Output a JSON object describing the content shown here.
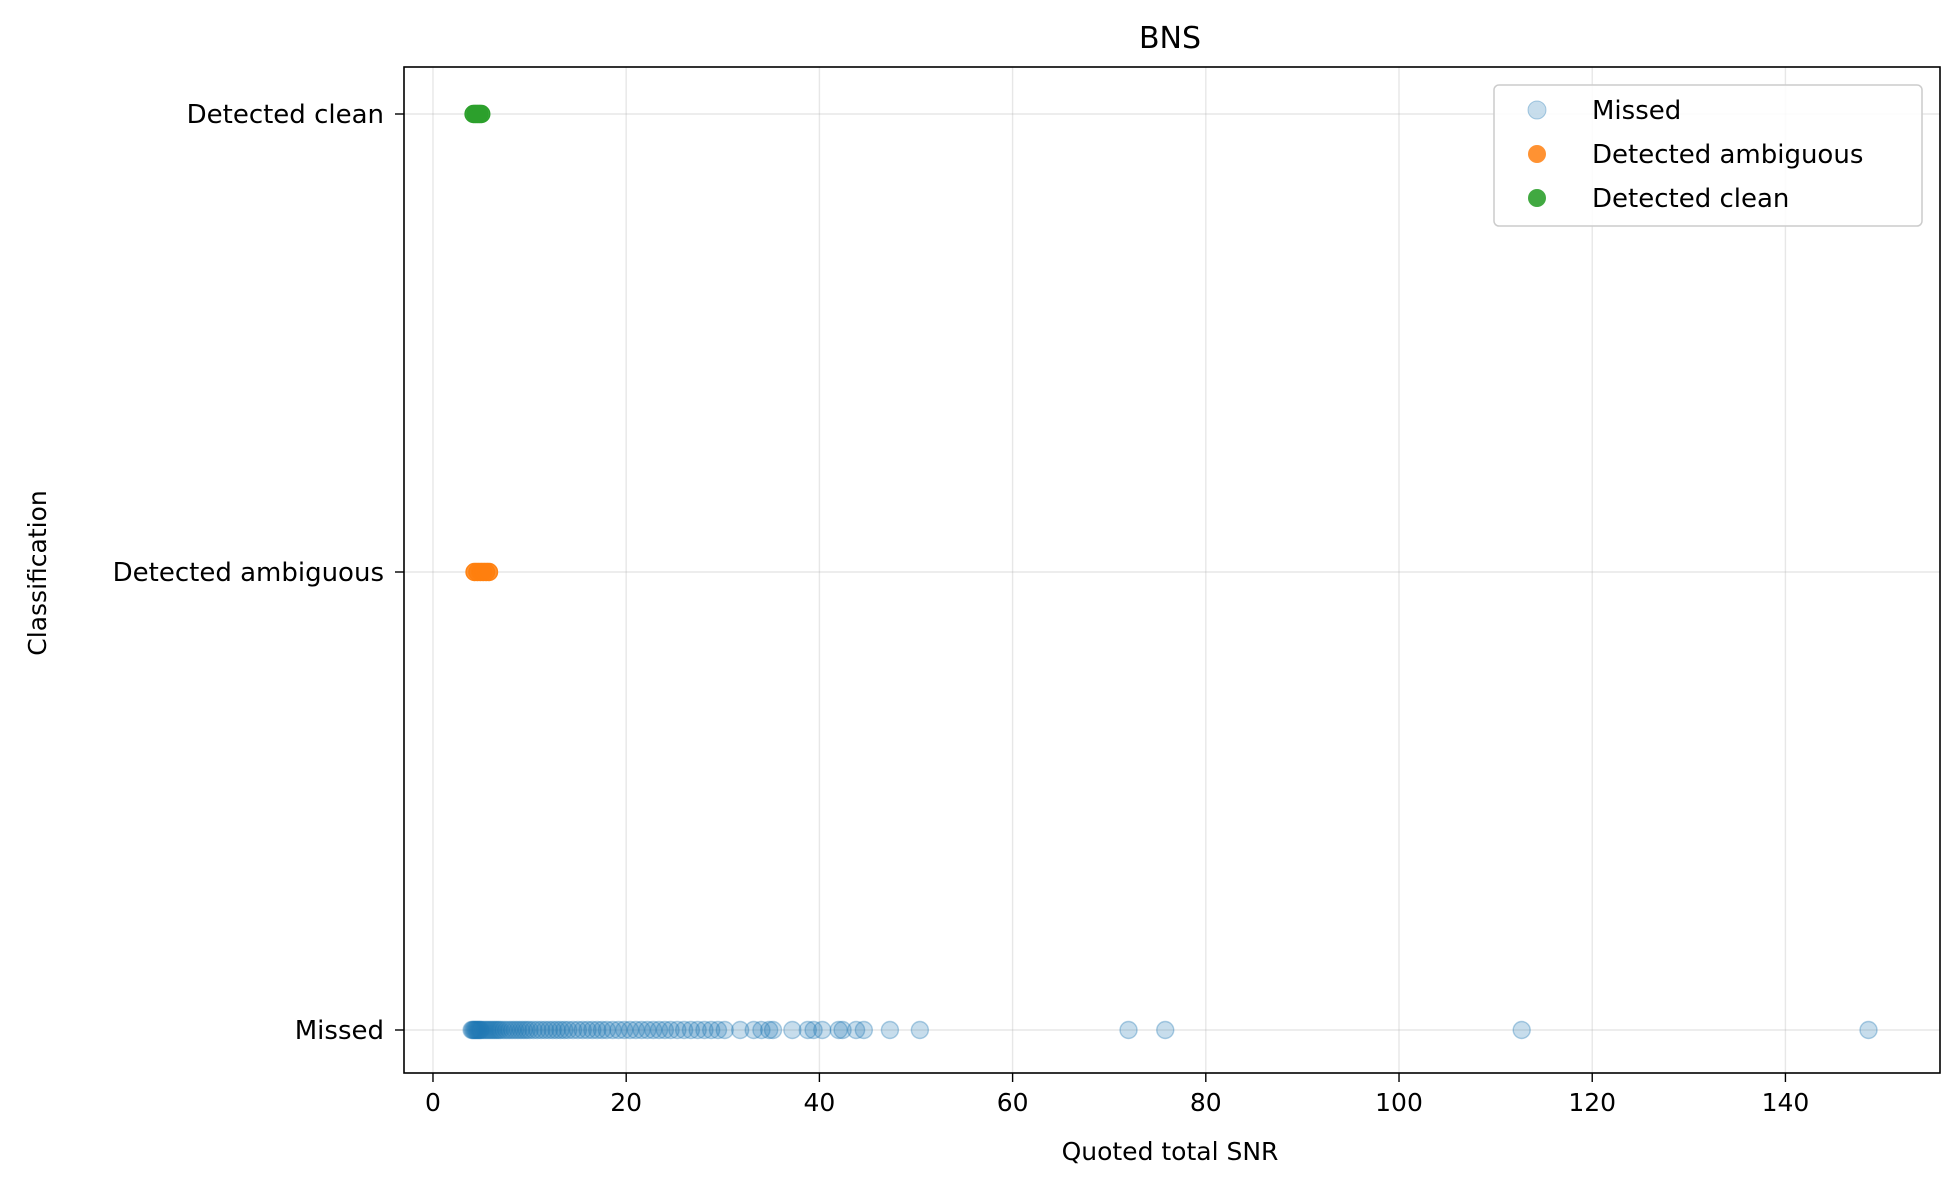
{
  "chart_data": {
    "type": "scatter",
    "title": "BNS",
    "xlabel": "Quoted total SNR",
    "ylabel": "Classification",
    "xlim": [
      -3,
      156
    ],
    "x_ticks": [
      0,
      20,
      40,
      60,
      80,
      100,
      120,
      140
    ],
    "categories": [
      "Missed",
      "Detected ambiguous",
      "Detected clean"
    ],
    "grid": true,
    "legend_position": "top-right",
    "series": [
      {
        "name": "Missed",
        "category": "Missed",
        "color": "#1f77b4",
        "opacity": 0.25,
        "x": [
          4.0,
          4.1,
          4.2,
          4.3,
          4.4,
          4.5,
          4.6,
          4.7,
          4.8,
          4.9,
          5.0,
          5.2,
          5.4,
          5.6,
          5.8,
          6.0,
          6.2,
          6.4,
          6.6,
          6.8,
          7.0,
          7.3,
          7.6,
          7.9,
          8.2,
          8.5,
          8.8,
          9.1,
          9.4,
          9.7,
          10.0,
          10.4,
          10.8,
          11.2,
          11.6,
          12.0,
          12.4,
          12.8,
          13.2,
          13.6,
          14.0,
          14.5,
          15.0,
          15.5,
          16.0,
          16.5,
          17.0,
          17.5,
          18.0,
          18.6,
          19.2,
          19.8,
          20.4,
          21.0,
          21.6,
          22.2,
          22.8,
          23.4,
          24.0,
          24.6,
          25.3,
          26.0,
          26.7,
          27.4,
          28.1,
          28.8,
          29.5,
          30.2,
          31.8,
          33.2,
          34.0,
          34.8,
          35.2,
          37.2,
          38.8,
          39.4,
          40.3,
          42.0,
          42.4,
          43.8,
          44.6,
          47.3,
          50.4,
          72.0,
          75.8,
          112.7,
          148.6
        ]
      },
      {
        "name": "Detected ambiguous",
        "category": "Detected ambiguous",
        "color": "#ff7f0e",
        "opacity": 0.85,
        "x": [
          4.3,
          4.6,
          4.9,
          5.2,
          5.5,
          5.8
        ]
      },
      {
        "name": "Detected clean",
        "category": "Detected clean",
        "color": "#2ca02c",
        "opacity": 0.9,
        "x": [
          4.2,
          4.4,
          4.6,
          4.8,
          5.0
        ]
      }
    ]
  }
}
